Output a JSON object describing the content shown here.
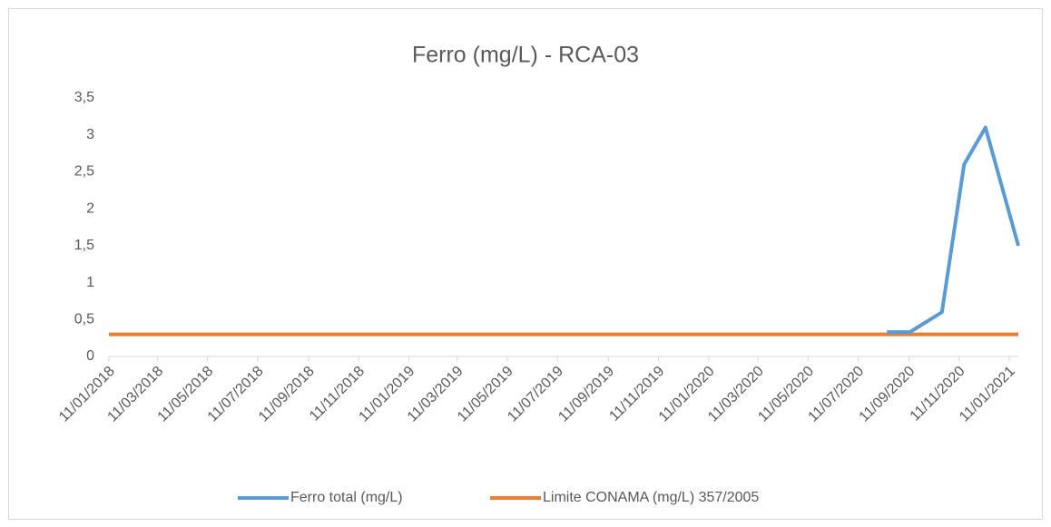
{
  "chart_data": {
    "type": "line",
    "title": "Ferro (mg/L) - RCA-03",
    "series": [
      {
        "name": "Ferro total (mg/L)",
        "color": "#5b9bd5",
        "x": [
          "2020-08-15",
          "2020-09-12",
          "2020-10-21",
          "2020-11-17",
          "2020-12-13",
          "2021-01-22"
        ],
        "values": [
          0.33,
          0.33,
          0.6,
          2.6,
          3.1,
          1.5
        ]
      },
      {
        "name": "Limite CONAMA (mg/L) 357/2005",
        "color": "#ed7d31",
        "x": [
          "2018-01-11",
          "2021-01-22"
        ],
        "values": [
          0.3,
          0.3
        ]
      }
    ],
    "xlim": [
      "2018-01-11",
      "2021-01-22"
    ],
    "xticks": [
      {
        "value": "2018-01-11",
        "label": "11/01/2018"
      },
      {
        "value": "2018-03-11",
        "label": "11/03/2018"
      },
      {
        "value": "2018-05-11",
        "label": "11/05/2018"
      },
      {
        "value": "2018-07-11",
        "label": "11/07/2018"
      },
      {
        "value": "2018-09-11",
        "label": "11/09/2018"
      },
      {
        "value": "2018-11-11",
        "label": "11/11/2018"
      },
      {
        "value": "2019-01-11",
        "label": "11/01/2019"
      },
      {
        "value": "2019-03-11",
        "label": "11/03/2019"
      },
      {
        "value": "2019-05-11",
        "label": "11/05/2019"
      },
      {
        "value": "2019-07-11",
        "label": "11/07/2019"
      },
      {
        "value": "2019-09-11",
        "label": "11/09/2019"
      },
      {
        "value": "2019-11-11",
        "label": "11/11/2019"
      },
      {
        "value": "2020-01-11",
        "label": "11/01/2020"
      },
      {
        "value": "2020-03-11",
        "label": "11/03/2020"
      },
      {
        "value": "2020-05-11",
        "label": "11/05/2020"
      },
      {
        "value": "2020-07-11",
        "label": "11/07/2020"
      },
      {
        "value": "2020-09-11",
        "label": "11/09/2020"
      },
      {
        "value": "2020-11-11",
        "label": "11/11/2020"
      },
      {
        "value": "2021-01-11",
        "label": "11/01/2021"
      }
    ],
    "ylim": [
      0,
      3.5
    ],
    "yticks": [
      0,
      {
        "value": 0.5,
        "label": "0,5"
      },
      1,
      {
        "value": 1.5,
        "label": "1,5"
      },
      2,
      {
        "value": 2.5,
        "label": "2,5"
      },
      3,
      {
        "value": 3.5,
        "label": "3,5"
      }
    ],
    "grid": false,
    "legend": "bottom"
  }
}
